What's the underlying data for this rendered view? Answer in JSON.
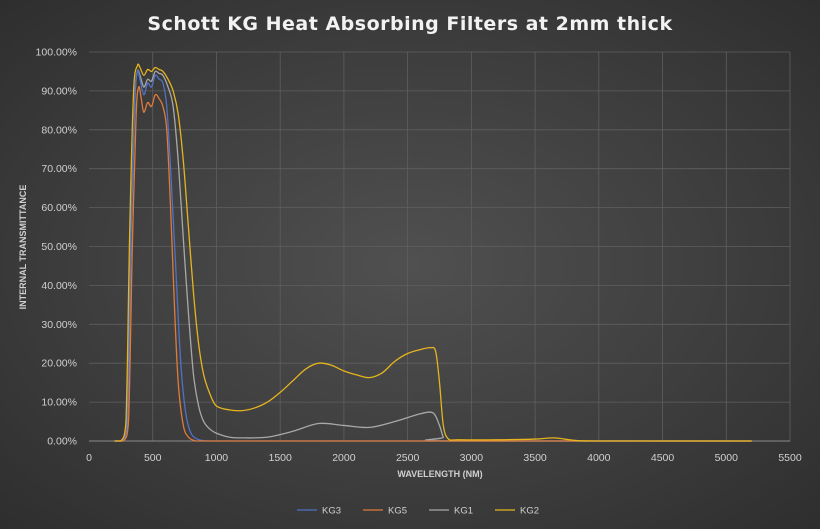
{
  "chart_data": {
    "type": "line",
    "title": "Schott  KG  Heat  Absorbing  Filters  at  2mm  thick",
    "xlabel": "WAVELENGTH (NM)",
    "ylabel": "INTERNAL TRANSMITTANCE",
    "xlim": [
      0,
      5500
    ],
    "ylim": [
      0,
      1
    ],
    "xticks": [
      "0",
      "500",
      "1000",
      "1500",
      "2000",
      "2500",
      "3000",
      "3500",
      "4000",
      "4500",
      "5000",
      "5500"
    ],
    "yticks": [
      "0.00%",
      "10.00%",
      "20.00%",
      "30.00%",
      "40.00%",
      "50.00%",
      "60.00%",
      "70.00%",
      "80.00%",
      "90.00%",
      "100.00%"
    ],
    "grid": true,
    "legend_position": "bottom",
    "series": [
      {
        "name": "KG3",
        "color": "#4f72c4",
        "points": [
          [
            200,
            0
          ],
          [
            260,
            0
          ],
          [
            300,
            0.05
          ],
          [
            330,
            0.55
          ],
          [
            360,
            0.88
          ],
          [
            380,
            0.95
          ],
          [
            400,
            0.93
          ],
          [
            430,
            0.89
          ],
          [
            460,
            0.92
          ],
          [
            490,
            0.91
          ],
          [
            520,
            0.94
          ],
          [
            550,
            0.93
          ],
          [
            580,
            0.92
          ],
          [
            610,
            0.86
          ],
          [
            640,
            0.7
          ],
          [
            680,
            0.45
          ],
          [
            720,
            0.2
          ],
          [
            760,
            0.07
          ],
          [
            800,
            0.02
          ],
          [
            850,
            0.005
          ],
          [
            900,
            0.001
          ],
          [
            1000,
            0
          ],
          [
            1500,
            0
          ],
          [
            2000,
            0
          ],
          [
            2500,
            0
          ],
          [
            3000,
            0
          ],
          [
            5200,
            0
          ]
        ]
      },
      {
        "name": "KG5",
        "color": "#e07b39",
        "points": [
          [
            200,
            0
          ],
          [
            270,
            0
          ],
          [
            310,
            0.05
          ],
          [
            340,
            0.5
          ],
          [
            370,
            0.84
          ],
          [
            390,
            0.91
          ],
          [
            410,
            0.88
          ],
          [
            430,
            0.845
          ],
          [
            460,
            0.87
          ],
          [
            490,
            0.86
          ],
          [
            520,
            0.89
          ],
          [
            550,
            0.88
          ],
          [
            580,
            0.86
          ],
          [
            610,
            0.8
          ],
          [
            640,
            0.6
          ],
          [
            670,
            0.35
          ],
          [
            700,
            0.15
          ],
          [
            740,
            0.04
          ],
          [
            780,
            0.01
          ],
          [
            830,
            0.001
          ],
          [
            900,
            0
          ],
          [
            1500,
            0
          ],
          [
            2000,
            0
          ],
          [
            2500,
            0
          ],
          [
            3000,
            0
          ],
          [
            5200,
            0
          ]
        ]
      },
      {
        "name": "KG1",
        "color": "#a8a8a8",
        "points": [
          [
            200,
            0
          ],
          [
            260,
            0
          ],
          [
            300,
            0.05
          ],
          [
            330,
            0.55
          ],
          [
            360,
            0.88
          ],
          [
            380,
            0.95
          ],
          [
            400,
            0.94
          ],
          [
            430,
            0.91
          ],
          [
            460,
            0.93
          ],
          [
            490,
            0.925
          ],
          [
            520,
            0.95
          ],
          [
            550,
            0.945
          ],
          [
            580,
            0.94
          ],
          [
            620,
            0.91
          ],
          [
            660,
            0.86
          ],
          [
            700,
            0.72
          ],
          [
            740,
            0.52
          ],
          [
            780,
            0.33
          ],
          [
            820,
            0.17
          ],
          [
            860,
            0.09
          ],
          [
            900,
            0.05
          ],
          [
            950,
            0.03
          ],
          [
            1000,
            0.02
          ],
          [
            1100,
            0.01
          ],
          [
            1200,
            0.008
          ],
          [
            1400,
            0.01
          ],
          [
            1600,
            0.025
          ],
          [
            1800,
            0.045
          ],
          [
            2000,
            0.04
          ],
          [
            2200,
            0.035
          ],
          [
            2400,
            0.05
          ],
          [
            2600,
            0.07
          ],
          [
            2700,
            0.072
          ],
          [
            2750,
            0.04
          ],
          [
            2780,
            0.01
          ],
          [
            2820,
            0
          ],
          [
            5200,
            0
          ]
        ]
      },
      {
        "name": "KG2",
        "color": "#e6b41e",
        "points": [
          [
            200,
            0
          ],
          [
            250,
            0
          ],
          [
            290,
            0.05
          ],
          [
            320,
            0.55
          ],
          [
            350,
            0.9
          ],
          [
            380,
            0.965
          ],
          [
            400,
            0.96
          ],
          [
            430,
            0.94
          ],
          [
            460,
            0.955
          ],
          [
            490,
            0.95
          ],
          [
            520,
            0.96
          ],
          [
            550,
            0.955
          ],
          [
            580,
            0.95
          ],
          [
            620,
            0.93
          ],
          [
            660,
            0.9
          ],
          [
            700,
            0.84
          ],
          [
            740,
            0.72
          ],
          [
            780,
            0.55
          ],
          [
            820,
            0.38
          ],
          [
            860,
            0.25
          ],
          [
            900,
            0.17
          ],
          [
            950,
            0.12
          ],
          [
            1000,
            0.09
          ],
          [
            1100,
            0.08
          ],
          [
            1200,
            0.078
          ],
          [
            1300,
            0.085
          ],
          [
            1400,
            0.1
          ],
          [
            1500,
            0.125
          ],
          [
            1600,
            0.155
          ],
          [
            1700,
            0.185
          ],
          [
            1800,
            0.2
          ],
          [
            1900,
            0.195
          ],
          [
            2000,
            0.18
          ],
          [
            2100,
            0.17
          ],
          [
            2200,
            0.163
          ],
          [
            2300,
            0.175
          ],
          [
            2400,
            0.205
          ],
          [
            2500,
            0.225
          ],
          [
            2600,
            0.235
          ],
          [
            2680,
            0.24
          ],
          [
            2720,
            0.23
          ],
          [
            2750,
            0.15
          ],
          [
            2780,
            0.04
          ],
          [
            2820,
            0.005
          ],
          [
            2900,
            0.003
          ],
          [
            3200,
            0.003
          ],
          [
            3500,
            0.005
          ],
          [
            3650,
            0.008
          ],
          [
            3800,
            0.002
          ],
          [
            4000,
            0
          ],
          [
            5200,
            0
          ]
        ]
      }
    ]
  }
}
